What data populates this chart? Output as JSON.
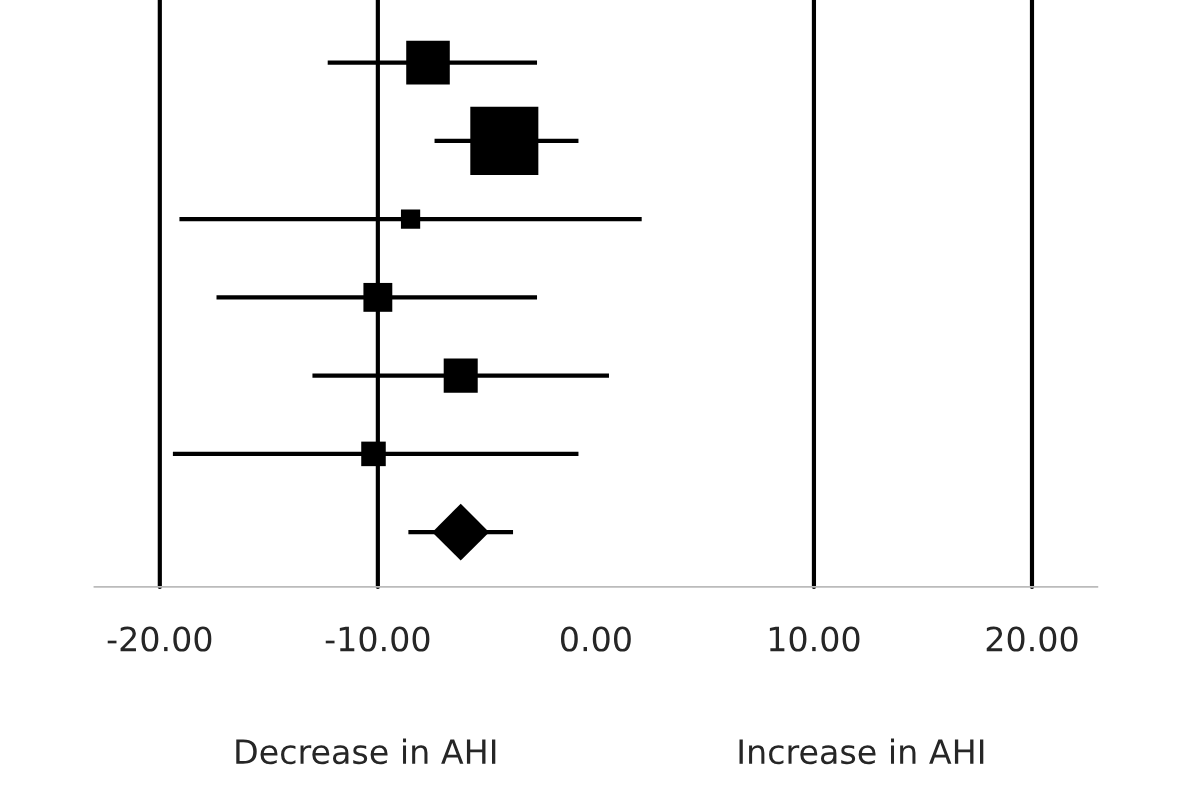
{
  "chart_data": {
    "type": "scatter",
    "orientation": "horizontal",
    "categories": [
      null,
      null,
      null,
      null,
      null,
      null,
      null
    ],
    "series": [
      {
        "color": "#000000",
        "marker": "square",
        "values": [
          -7.7,
          -4.2,
          -8.5,
          -10.0,
          -6.2,
          -10.2,
          null
        ],
        "errors": [
          [
            -12.3,
            -2.7
          ],
          [
            -7.4,
            -0.8
          ],
          [
            -19.1,
            2.1
          ],
          [
            -17.4,
            -2.7
          ],
          [
            -13.0,
            0.6
          ],
          [
            -19.4,
            -0.8
          ],
          null
        ],
        "sizes": [
          0.41,
          1,
          0.08,
          0.18,
          0.25,
          0.13,
          null
        ]
      },
      {
        "color": "#000000",
        "marker": "diamond",
        "values": [
          null,
          null,
          null,
          null,
          null,
          null,
          -6.2
        ],
        "errors": [
          null,
          null,
          null,
          null,
          null,
          null,
          [
            -8.6,
            -3.8
          ]
        ]
      }
    ],
    "xlim": [
      -23,
      23
    ],
    "xticks": [
      {
        "value": -20,
        "label": "-20.00"
      },
      {
        "value": -10,
        "label": "-10.00"
      },
      {
        "value": 0,
        "label": "0.00"
      },
      {
        "value": 10,
        "label": "10.00"
      },
      {
        "value": 20,
        "label": "20.00"
      }
    ],
    "ref_lines": [
      {
        "axis": "x",
        "value": -20,
        "color": "#000000"
      },
      {
        "axis": "x",
        "value": -10,
        "color": "#000000"
      },
      {
        "axis": "x",
        "value": 10,
        "color": "#000000"
      },
      {
        "axis": "x",
        "value": 20,
        "color": "#000000"
      }
    ],
    "grid": false,
    "annotations": [
      "Decrease in AHI",
      "Increase in AHI"
    ]
  }
}
